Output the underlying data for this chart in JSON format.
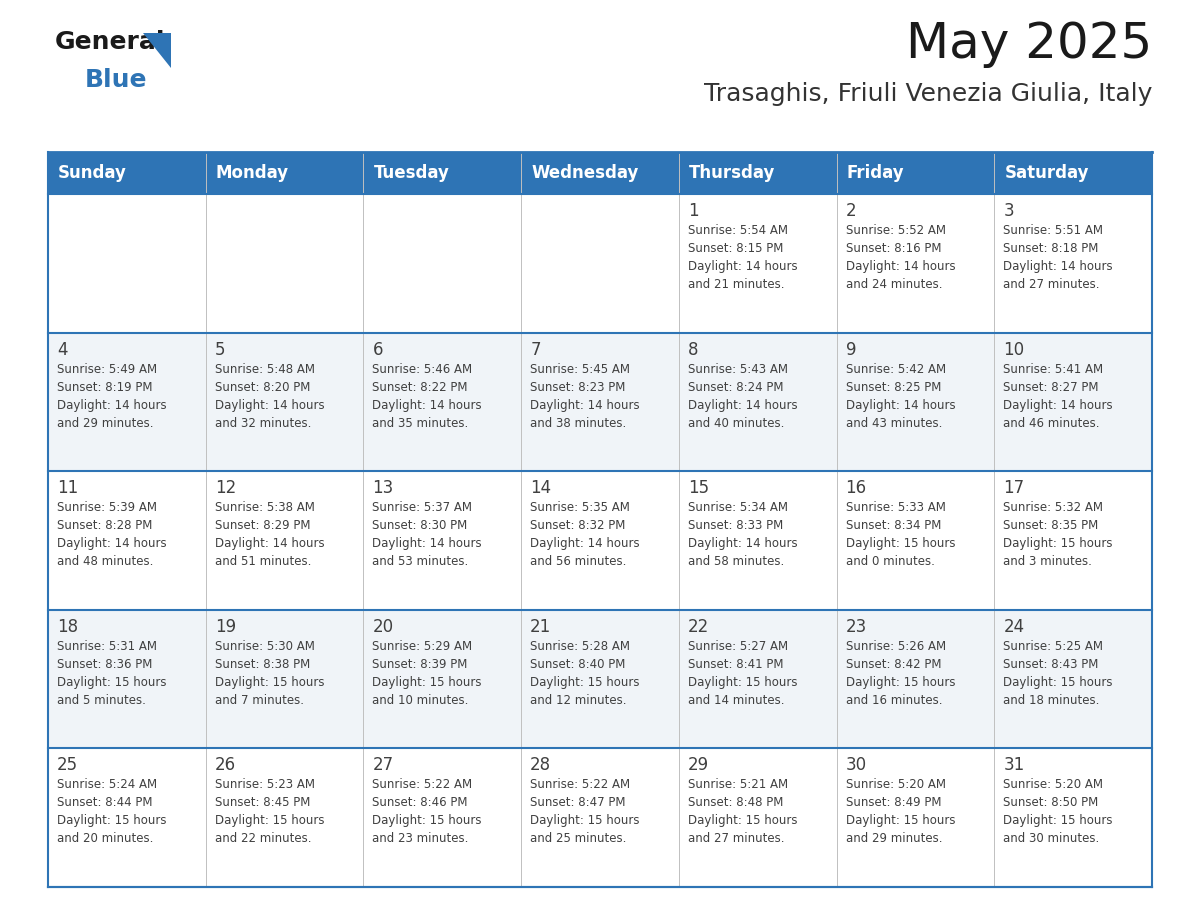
{
  "title": "May 2025",
  "subtitle": "Trasaghis, Friuli Venezia Giulia, Italy",
  "header_bg": "#2E74B5",
  "header_text_color": "#FFFFFF",
  "days_of_week": [
    "Sunday",
    "Monday",
    "Tuesday",
    "Wednesday",
    "Thursday",
    "Friday",
    "Saturday"
  ],
  "row_bg_light": "#FFFFFF",
  "row_bg_dark": "#F0F4F8",
  "border_color": "#2E74B5",
  "text_color": "#404040",
  "calendar_data": [
    [
      {
        "day": "",
        "info": ""
      },
      {
        "day": "",
        "info": ""
      },
      {
        "day": "",
        "info": ""
      },
      {
        "day": "",
        "info": ""
      },
      {
        "day": "1",
        "info": "Sunrise: 5:54 AM\nSunset: 8:15 PM\nDaylight: 14 hours\nand 21 minutes."
      },
      {
        "day": "2",
        "info": "Sunrise: 5:52 AM\nSunset: 8:16 PM\nDaylight: 14 hours\nand 24 minutes."
      },
      {
        "day": "3",
        "info": "Sunrise: 5:51 AM\nSunset: 8:18 PM\nDaylight: 14 hours\nand 27 minutes."
      }
    ],
    [
      {
        "day": "4",
        "info": "Sunrise: 5:49 AM\nSunset: 8:19 PM\nDaylight: 14 hours\nand 29 minutes."
      },
      {
        "day": "5",
        "info": "Sunrise: 5:48 AM\nSunset: 8:20 PM\nDaylight: 14 hours\nand 32 minutes."
      },
      {
        "day": "6",
        "info": "Sunrise: 5:46 AM\nSunset: 8:22 PM\nDaylight: 14 hours\nand 35 minutes."
      },
      {
        "day": "7",
        "info": "Sunrise: 5:45 AM\nSunset: 8:23 PM\nDaylight: 14 hours\nand 38 minutes."
      },
      {
        "day": "8",
        "info": "Sunrise: 5:43 AM\nSunset: 8:24 PM\nDaylight: 14 hours\nand 40 minutes."
      },
      {
        "day": "9",
        "info": "Sunrise: 5:42 AM\nSunset: 8:25 PM\nDaylight: 14 hours\nand 43 minutes."
      },
      {
        "day": "10",
        "info": "Sunrise: 5:41 AM\nSunset: 8:27 PM\nDaylight: 14 hours\nand 46 minutes."
      }
    ],
    [
      {
        "day": "11",
        "info": "Sunrise: 5:39 AM\nSunset: 8:28 PM\nDaylight: 14 hours\nand 48 minutes."
      },
      {
        "day": "12",
        "info": "Sunrise: 5:38 AM\nSunset: 8:29 PM\nDaylight: 14 hours\nand 51 minutes."
      },
      {
        "day": "13",
        "info": "Sunrise: 5:37 AM\nSunset: 8:30 PM\nDaylight: 14 hours\nand 53 minutes."
      },
      {
        "day": "14",
        "info": "Sunrise: 5:35 AM\nSunset: 8:32 PM\nDaylight: 14 hours\nand 56 minutes."
      },
      {
        "day": "15",
        "info": "Sunrise: 5:34 AM\nSunset: 8:33 PM\nDaylight: 14 hours\nand 58 minutes."
      },
      {
        "day": "16",
        "info": "Sunrise: 5:33 AM\nSunset: 8:34 PM\nDaylight: 15 hours\nand 0 minutes."
      },
      {
        "day": "17",
        "info": "Sunrise: 5:32 AM\nSunset: 8:35 PM\nDaylight: 15 hours\nand 3 minutes."
      }
    ],
    [
      {
        "day": "18",
        "info": "Sunrise: 5:31 AM\nSunset: 8:36 PM\nDaylight: 15 hours\nand 5 minutes."
      },
      {
        "day": "19",
        "info": "Sunrise: 5:30 AM\nSunset: 8:38 PM\nDaylight: 15 hours\nand 7 minutes."
      },
      {
        "day": "20",
        "info": "Sunrise: 5:29 AM\nSunset: 8:39 PM\nDaylight: 15 hours\nand 10 minutes."
      },
      {
        "day": "21",
        "info": "Sunrise: 5:28 AM\nSunset: 8:40 PM\nDaylight: 15 hours\nand 12 minutes."
      },
      {
        "day": "22",
        "info": "Sunrise: 5:27 AM\nSunset: 8:41 PM\nDaylight: 15 hours\nand 14 minutes."
      },
      {
        "day": "23",
        "info": "Sunrise: 5:26 AM\nSunset: 8:42 PM\nDaylight: 15 hours\nand 16 minutes."
      },
      {
        "day": "24",
        "info": "Sunrise: 5:25 AM\nSunset: 8:43 PM\nDaylight: 15 hours\nand 18 minutes."
      }
    ],
    [
      {
        "day": "25",
        "info": "Sunrise: 5:24 AM\nSunset: 8:44 PM\nDaylight: 15 hours\nand 20 minutes."
      },
      {
        "day": "26",
        "info": "Sunrise: 5:23 AM\nSunset: 8:45 PM\nDaylight: 15 hours\nand 22 minutes."
      },
      {
        "day": "27",
        "info": "Sunrise: 5:22 AM\nSunset: 8:46 PM\nDaylight: 15 hours\nand 23 minutes."
      },
      {
        "day": "28",
        "info": "Sunrise: 5:22 AM\nSunset: 8:47 PM\nDaylight: 15 hours\nand 25 minutes."
      },
      {
        "day": "29",
        "info": "Sunrise: 5:21 AM\nSunset: 8:48 PM\nDaylight: 15 hours\nand 27 minutes."
      },
      {
        "day": "30",
        "info": "Sunrise: 5:20 AM\nSunset: 8:49 PM\nDaylight: 15 hours\nand 29 minutes."
      },
      {
        "day": "31",
        "info": "Sunrise: 5:20 AM\nSunset: 8:50 PM\nDaylight: 15 hours\nand 30 minutes."
      }
    ]
  ]
}
